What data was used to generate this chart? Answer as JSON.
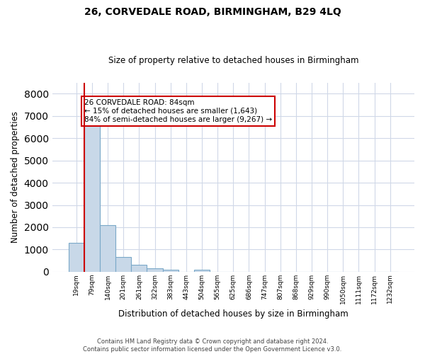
{
  "title1": "26, CORVEDALE ROAD, BIRMINGHAM, B29 4LQ",
  "title2": "Size of property relative to detached houses in Birmingham",
  "xlabel": "Distribution of detached houses by size in Birmingham",
  "ylabel": "Number of detached properties",
  "bar_labels": [
    "19sqm",
    "79sqm",
    "140sqm",
    "201sqm",
    "261sqm",
    "322sqm",
    "383sqm",
    "443sqm",
    "504sqm",
    "565sqm",
    "625sqm",
    "686sqm",
    "747sqm",
    "807sqm",
    "868sqm",
    "929sqm",
    "990sqm",
    "1050sqm",
    "1111sqm",
    "1172sqm",
    "1232sqm"
  ],
  "bar_values": [
    1300,
    6600,
    2080,
    650,
    300,
    160,
    100,
    0,
    90,
    0,
    0,
    0,
    0,
    0,
    0,
    0,
    0,
    0,
    0,
    0,
    0
  ],
  "bar_color": "#c8d8e8",
  "bar_edge_color": "#7aa8c8",
  "vline_color": "#cc0000",
  "vline_x": 0.5,
  "ylim": [
    0,
    8500
  ],
  "yticks": [
    0,
    1000,
    2000,
    3000,
    4000,
    5000,
    6000,
    7000,
    8000
  ],
  "annotation_title": "26 CORVEDALE ROAD: 84sqm",
  "annotation_line1": "← 15% of detached houses are smaller (1,643)",
  "annotation_line2": "84% of semi-detached houses are larger (9,267) →",
  "annotation_box_color": "#cc0000",
  "footer1": "Contains HM Land Registry data © Crown copyright and database right 2024.",
  "footer2": "Contains public sector information licensed under the Open Government Licence v3.0.",
  "bg_color": "#ffffff",
  "grid_color": "#d0d8e8"
}
